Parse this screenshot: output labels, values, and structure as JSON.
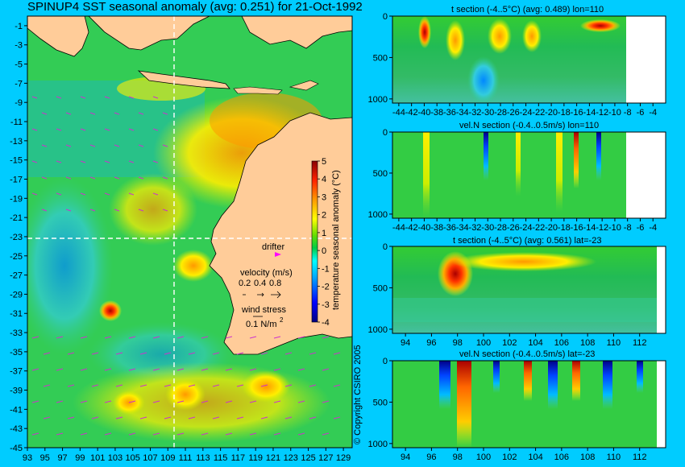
{
  "title": "SPINUP4 SST seasonal anomaly (avg: 0.251) for 21-Oct-1992",
  "colors": {
    "background": "#00ccff",
    "land": "#ffcc99",
    "section_blank": "#ffffff",
    "drifter": "#ff00ff",
    "vectors": "#cc33cc",
    "crosshair": "#ffffff"
  },
  "chart_data": [
    {
      "type": "heatmap",
      "name": "sst-map",
      "title": "SPINUP4 SST seasonal anomaly (avg: 0.251) for 21-Oct-1992",
      "xlim": [
        93,
        130
      ],
      "ylim": [
        -45,
        0
      ],
      "x_ticks": [
        93,
        95,
        97,
        99,
        101,
        103,
        105,
        107,
        109,
        111,
        113,
        115,
        117,
        119,
        121,
        123,
        125,
        127,
        129
      ],
      "y_ticks": [
        -1,
        -3,
        -5,
        -7,
        -9,
        -11,
        -13,
        -15,
        -17,
        -19,
        -21,
        -23,
        -25,
        -27,
        -29,
        -31,
        -33,
        -35,
        -37,
        -39,
        -41,
        -43,
        -45
      ],
      "crosshair": {
        "lon": 110,
        "lat": -23
      },
      "colorbar": {
        "label": "temperature seasonal anomaly (°C)",
        "ticks": [
          5,
          4,
          3,
          2,
          1,
          0,
          -1,
          -2,
          -3,
          -4
        ],
        "range": [
          -4,
          5
        ]
      },
      "legend": {
        "drifter_label": "drifter",
        "velocity_label": "velocity (m/s)",
        "velocity_values": [
          "0.2",
          "0.4",
          "0.8"
        ],
        "wind_label": "wind stress",
        "wind_value": "0.1 N/m",
        "wind_exponent": "2"
      }
    },
    {
      "type": "heatmap",
      "name": "t-section-lon",
      "title": "t section (-4..5°C) (avg: 0.489) lon=110",
      "xlim": [
        -45,
        -2
      ],
      "x_ticks": [
        -44,
        -42,
        -40,
        -38,
        -36,
        -34,
        -32,
        -30,
        -28,
        -26,
        -24,
        -22,
        -20,
        -18,
        -16,
        -14,
        -12,
        -10,
        -8,
        -6,
        -4
      ],
      "y_ticks": [
        0,
        500,
        1000
      ],
      "ylim": [
        1050,
        0
      ],
      "data_end": -7.5
    },
    {
      "type": "heatmap",
      "name": "veln-section-lon",
      "title": "vel.N section (-0.4..0.5m/s) lon=110",
      "xlim": [
        -45,
        -2
      ],
      "x_ticks": [
        -44,
        -42,
        -40,
        -38,
        -36,
        -34,
        -32,
        -30,
        -28,
        -26,
        -24,
        -22,
        -20,
        -18,
        -16,
        -14,
        -12,
        -10,
        -8,
        -6,
        -4
      ],
      "y_ticks": [
        0,
        500,
        1000
      ],
      "ylim": [
        1050,
        0
      ],
      "data_end": -7.5
    },
    {
      "type": "heatmap",
      "name": "t-section-lat",
      "title": "t section (-4..5°C) (avg: 0.561) lat=-23",
      "xlim": [
        93,
        114
      ],
      "x_ticks": [
        94,
        96,
        98,
        100,
        102,
        104,
        106,
        108,
        110,
        112
      ],
      "y_ticks": [
        0,
        500,
        1000
      ],
      "ylim": [
        1050,
        0
      ],
      "data_end": 113.5
    },
    {
      "type": "heatmap",
      "name": "veln-section-lat",
      "title": "vel.N section (-0.4..0.5m/s) lat=-23",
      "xlim": [
        93,
        114
      ],
      "x_ticks": [
        94,
        96,
        98,
        100,
        102,
        104,
        106,
        108,
        110,
        112
      ],
      "y_ticks": [
        0,
        500,
        1000
      ],
      "ylim": [
        1050,
        0
      ],
      "data_end": 113.5
    }
  ],
  "copyright": "© Copyright CSIRO 2005"
}
